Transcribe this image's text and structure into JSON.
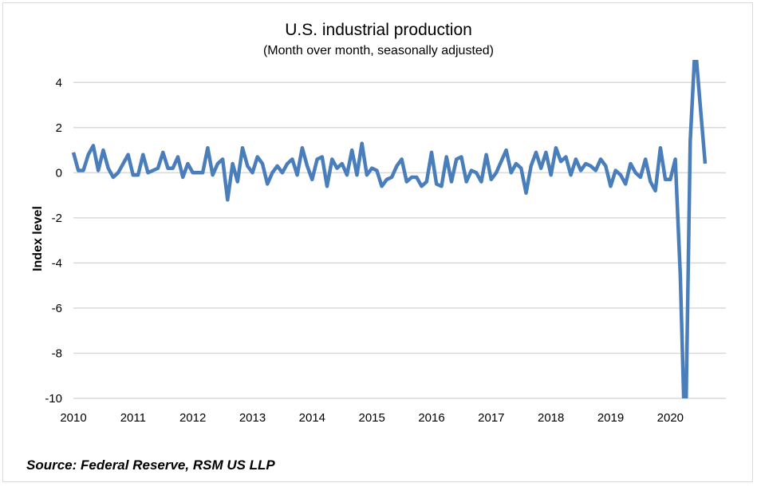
{
  "chart_data": {
    "type": "line",
    "title": "U.S. industrial production",
    "subtitle": "(Month over month, seasonally adjusted)",
    "ylabel": "Index level",
    "xlabel": "",
    "ylim": [
      -10,
      5
    ],
    "yticks": [
      4,
      2,
      0,
      -2,
      -4,
      -6,
      -8,
      -10
    ],
    "xtick_labels": [
      "2010",
      "2011",
      "2012",
      "2013",
      "2014",
      "2015",
      "2016",
      "2017",
      "2018",
      "2019",
      "2020"
    ],
    "x_start": "2010-01",
    "x_end": "2020-08",
    "frequency": "monthly",
    "grid": "horizontal",
    "line_color": "#4a7ebb",
    "values": [
      0.9,
      0.1,
      0.1,
      0.8,
      1.2,
      0.1,
      1.0,
      0.2,
      -0.2,
      0.0,
      0.4,
      0.8,
      -0.1,
      -0.1,
      0.8,
      0.0,
      0.1,
      0.2,
      0.9,
      0.2,
      0.2,
      0.7,
      -0.2,
      0.4,
      0.0,
      0.0,
      0.0,
      1.1,
      -0.1,
      0.4,
      0.6,
      -1.2,
      0.4,
      -0.4,
      1.1,
      0.3,
      0.0,
      0.7,
      0.4,
      -0.5,
      0.0,
      0.3,
      0.0,
      0.4,
      0.6,
      -0.1,
      1.1,
      0.3,
      -0.3,
      0.6,
      0.7,
      -0.6,
      0.6,
      0.2,
      0.4,
      -0.1,
      1.0,
      -0.1,
      1.3,
      -0.1,
      0.2,
      0.1,
      -0.6,
      -0.3,
      -0.2,
      0.3,
      0.6,
      -0.4,
      -0.2,
      -0.2,
      -0.6,
      -0.4,
      0.9,
      -0.5,
      -0.6,
      0.7,
      -0.4,
      0.6,
      0.7,
      -0.4,
      0.1,
      0.0,
      -0.4,
      0.8,
      -0.3,
      0.0,
      0.5,
      1.0,
      0.0,
      0.4,
      0.2,
      -0.9,
      0.3,
      0.9,
      0.2,
      0.9,
      -0.1,
      1.1,
      0.5,
      0.7,
      -0.1,
      0.6,
      0.1,
      0.4,
      0.3,
      0.1,
      0.6,
      0.3,
      -0.6,
      0.1,
      -0.1,
      -0.5,
      0.4,
      0.0,
      -0.2,
      0.6,
      -0.4,
      -0.8,
      1.1,
      -0.3,
      -0.3,
      0.6,
      -4.5,
      -12.5,
      1.4,
      5.7,
      3.0,
      0.4
    ]
  },
  "source": "Source: Federal Reserve, RSM US LLP"
}
